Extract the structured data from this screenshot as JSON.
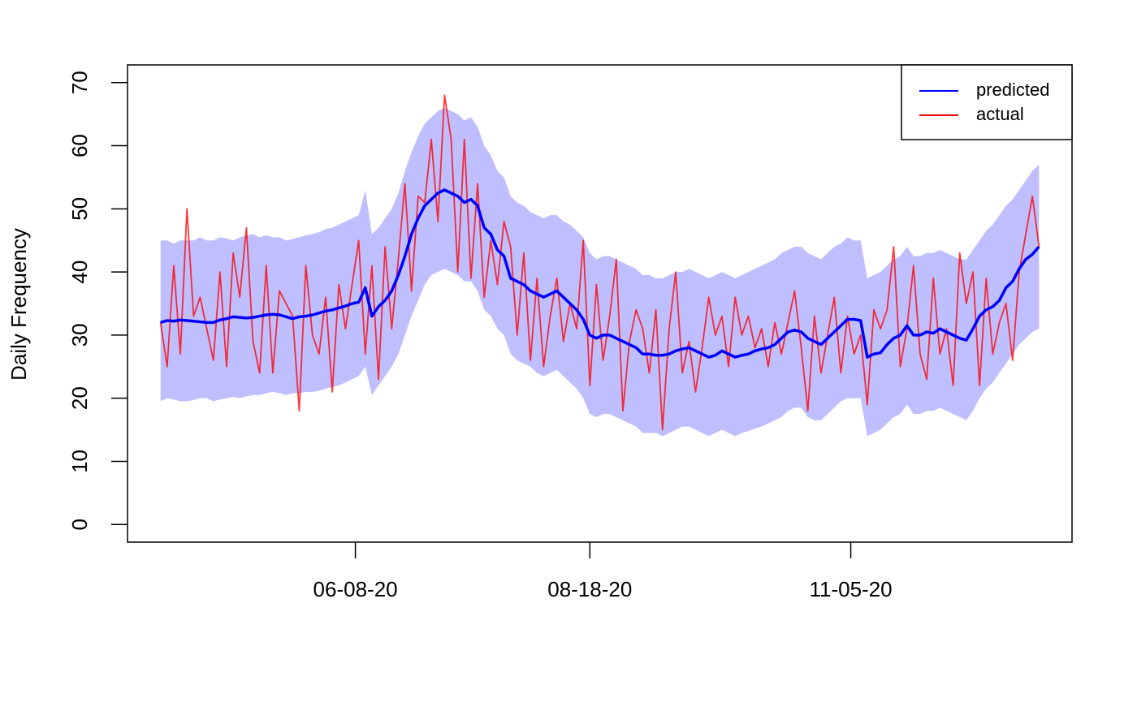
{
  "chart_data": {
    "type": "line",
    "y_label": "Daily Frequency",
    "x": [
      "2020-04-10",
      "2020-04-12",
      "2020-04-14",
      "2020-04-16",
      "2020-04-18",
      "2020-04-20",
      "2020-04-22",
      "2020-04-24",
      "2020-04-26",
      "2020-04-28",
      "2020-04-30",
      "2020-05-02",
      "2020-05-04",
      "2020-05-06",
      "2020-05-08",
      "2020-05-10",
      "2020-05-12",
      "2020-05-14",
      "2020-05-16",
      "2020-05-18",
      "2020-05-20",
      "2020-05-22",
      "2020-05-24",
      "2020-05-26",
      "2020-05-28",
      "2020-05-30",
      "2020-06-01",
      "2020-06-03",
      "2020-06-05",
      "2020-06-07",
      "2020-06-09",
      "2020-06-11",
      "2020-06-13",
      "2020-06-15",
      "2020-06-17",
      "2020-06-19",
      "2020-06-21",
      "2020-06-23",
      "2020-06-25",
      "2020-06-27",
      "2020-06-29",
      "2020-07-01",
      "2020-07-03",
      "2020-07-05",
      "2020-07-07",
      "2020-07-09",
      "2020-07-11",
      "2020-07-13",
      "2020-07-15",
      "2020-07-17",
      "2020-07-19",
      "2020-07-21",
      "2020-07-23",
      "2020-07-25",
      "2020-07-27",
      "2020-07-29",
      "2020-07-31",
      "2020-08-02",
      "2020-08-04",
      "2020-08-06",
      "2020-08-08",
      "2020-08-10",
      "2020-08-12",
      "2020-08-14",
      "2020-08-16",
      "2020-08-18",
      "2020-08-20",
      "2020-08-22",
      "2020-08-24",
      "2020-08-26",
      "2020-08-28",
      "2020-08-30",
      "2020-09-01",
      "2020-09-03",
      "2020-09-05",
      "2020-09-07",
      "2020-09-09",
      "2020-09-11",
      "2020-09-13",
      "2020-09-15",
      "2020-09-17",
      "2020-09-19",
      "2020-09-21",
      "2020-09-23",
      "2020-09-25",
      "2020-09-27",
      "2020-09-29",
      "2020-10-01",
      "2020-10-03",
      "2020-10-05",
      "2020-10-07",
      "2020-10-09",
      "2020-10-11",
      "2020-10-13",
      "2020-10-15",
      "2020-10-17",
      "2020-10-19",
      "2020-10-21",
      "2020-10-23",
      "2020-10-25",
      "2020-10-27",
      "2020-10-29",
      "2020-10-31",
      "2020-11-02",
      "2020-11-04",
      "2020-11-06",
      "2020-11-08",
      "2020-11-10",
      "2020-11-12",
      "2020-11-14",
      "2020-11-16",
      "2020-11-18",
      "2020-11-20",
      "2020-11-22",
      "2020-11-24",
      "2020-11-26",
      "2020-11-28",
      "2020-11-30",
      "2020-12-02",
      "2020-12-04",
      "2020-12-06",
      "2020-12-08",
      "2020-12-10",
      "2020-12-12",
      "2020-12-14",
      "2020-12-16",
      "2020-12-18",
      "2020-12-20",
      "2020-12-22",
      "2020-12-24",
      "2020-12-26",
      "2020-12-28",
      "2020-12-30",
      "2021-01-01"
    ],
    "series": [
      {
        "name": "predicted",
        "color": "#0000ff",
        "values": [
          32,
          32.3,
          32.2,
          32.4,
          32.3,
          32.2,
          32.1,
          32,
          32,
          32.4,
          32.6,
          32.9,
          32.8,
          32.7,
          32.8,
          33,
          33.2,
          33.3,
          33.2,
          32.9,
          32.6,
          32.9,
          33,
          33.2,
          33.5,
          33.8,
          34,
          34.3,
          34.6,
          35,
          35.2,
          37.5,
          33,
          34.5,
          35.5,
          37,
          39.5,
          42.5,
          46,
          48.5,
          50.5,
          51.5,
          52.5,
          53,
          52.5,
          52,
          51,
          51.5,
          50.5,
          47,
          46,
          43.5,
          42.5,
          39,
          38.5,
          38,
          37,
          36.5,
          36,
          36.5,
          37,
          36,
          35,
          34,
          32.5,
          30,
          29.5,
          30,
          30,
          29.5,
          29,
          28.5,
          28,
          27,
          27,
          26.8,
          26.8,
          27,
          27.5,
          27.8,
          28,
          27.5,
          27,
          26.5,
          26.8,
          27.5,
          27,
          26.5,
          26.8,
          27,
          27.5,
          27.8,
          28,
          28.5,
          29.5,
          30.5,
          30.8,
          30.5,
          29.5,
          29,
          28.5,
          29.5,
          30.5,
          31.5,
          32.5,
          32.5,
          32.3,
          26.5,
          27,
          27.2,
          28.5,
          29.5,
          30,
          31.5,
          30,
          30,
          30.5,
          30.3,
          31,
          30.5,
          30,
          29.5,
          29.2,
          31,
          33,
          34,
          34.5,
          35.5,
          37.5,
          38.5,
          40.5,
          42,
          42.8,
          44
        ]
      },
      {
        "name": "actual",
        "color": "#ff0000",
        "values": [
          32,
          25,
          41,
          27,
          50,
          33,
          36,
          31,
          26,
          40,
          25,
          43,
          36,
          47,
          29,
          24,
          41,
          24,
          37,
          35,
          33,
          18,
          41,
          30,
          27,
          36,
          21,
          38,
          31,
          38,
          45,
          27,
          41,
          23,
          44,
          31,
          42,
          54,
          37,
          52,
          51,
          61,
          48,
          68,
          61,
          40,
          61,
          39,
          54,
          36,
          45,
          38,
          48,
          44,
          30,
          43,
          26,
          39,
          25,
          33,
          39,
          29,
          35,
          31,
          45,
          22,
          38,
          26,
          33,
          42,
          18,
          29,
          34,
          31,
          24,
          34,
          15,
          31,
          40,
          24,
          29,
          21,
          28,
          36,
          30,
          33,
          25,
          36,
          30,
          33,
          28,
          31,
          25,
          32,
          27,
          32,
          37,
          28,
          18,
          33,
          24,
          30,
          36,
          24,
          33,
          27,
          30,
          19,
          34,
          31,
          34,
          44,
          25,
          31,
          41,
          27,
          23,
          39,
          27,
          31,
          22,
          43,
          35,
          40,
          22,
          39,
          27,
          32,
          35,
          26,
          40,
          46,
          52,
          44
        ]
      }
    ],
    "band": {
      "color": "#bfbfff",
      "upper": [
        45,
        45,
        44.5,
        45,
        45,
        45,
        45.5,
        45,
        45,
        45.5,
        45.3,
        45,
        45.5,
        45.8,
        46,
        45.5,
        45.8,
        45.5,
        45.5,
        45,
        45.2,
        45.5,
        45.8,
        46,
        46.3,
        46.8,
        47,
        47.5,
        48,
        48.5,
        49,
        53,
        46,
        47,
        48.5,
        50,
        52.5,
        56,
        59,
        61.5,
        63.5,
        64.5,
        65.5,
        66,
        65.5,
        65,
        64,
        64.5,
        63,
        60,
        58.5,
        56,
        55,
        52,
        51,
        50.5,
        49.5,
        49,
        48.5,
        49,
        49,
        48,
        47.5,
        46.5,
        45.5,
        43,
        42,
        42.5,
        42.5,
        42,
        41.5,
        41,
        40.5,
        39.5,
        39.5,
        39,
        39,
        39.5,
        40,
        40,
        40.5,
        40,
        39.5,
        39,
        39.5,
        40,
        39.5,
        39,
        39.5,
        40,
        40.5,
        41,
        41.5,
        42,
        43,
        43.5,
        44,
        44,
        43,
        42.5,
        42,
        43,
        44,
        44.5,
        45.5,
        45,
        45,
        39,
        39.5,
        40,
        41,
        42,
        42.5,
        44,
        42.5,
        42.5,
        43,
        43,
        43.5,
        43,
        42.5,
        42,
        42,
        43.5,
        45,
        46.5,
        47.5,
        49,
        50.5,
        51.5,
        53,
        54.5,
        56,
        57
      ],
      "lower": [
        19.5,
        20,
        19.8,
        19.5,
        19.5,
        19.7,
        20,
        20,
        19.5,
        19.8,
        20,
        20.2,
        20,
        20.3,
        20.5,
        20.5,
        20.8,
        21,
        20.8,
        20.5,
        20.8,
        20.8,
        21,
        21,
        21.2,
        21.5,
        21.8,
        22,
        22.5,
        23,
        23.5,
        25,
        20.5,
        22,
        23.5,
        25,
        27,
        30,
        33,
        35.5,
        38,
        39.5,
        40,
        40.5,
        40,
        39.5,
        38.5,
        38.5,
        37,
        34,
        33,
        31,
        30,
        27,
        26,
        25.5,
        25,
        24,
        23.5,
        24,
        24.5,
        23.5,
        22.5,
        21.5,
        20,
        17.5,
        17,
        17.5,
        17.5,
        17,
        16.5,
        16,
        15.5,
        14.5,
        14.5,
        14.5,
        14,
        14.5,
        15,
        15.5,
        15.5,
        15,
        14.5,
        14,
        14.5,
        15,
        14.5,
        14,
        14.5,
        14.8,
        15.2,
        15.5,
        16,
        16.5,
        17,
        18,
        18.5,
        18.5,
        17,
        16.5,
        16.5,
        17.5,
        18.5,
        19.5,
        20,
        20,
        20,
        14,
        14.5,
        15,
        16,
        17,
        17.5,
        19,
        17.5,
        17.5,
        18,
        18,
        18.5,
        18,
        17.5,
        17,
        16.5,
        18,
        20,
        21.5,
        22.5,
        24,
        25.5,
        27,
        28.5,
        29.5,
        30.5,
        31
      ]
    },
    "xlim": [
      "2020-03-31",
      "2021-01-11"
    ],
    "xticks": [
      {
        "value": "2020-06-08",
        "label": "06-08-20"
      },
      {
        "value": "2020-08-18",
        "label": "08-18-20"
      },
      {
        "value": "2020-11-05",
        "label": "11-05-20"
      }
    ],
    "ylim": [
      -2.8,
      72.8
    ],
    "yticks": [
      0,
      10,
      20,
      30,
      40,
      50,
      60,
      70
    ],
    "grid": false,
    "legend": "topright"
  }
}
